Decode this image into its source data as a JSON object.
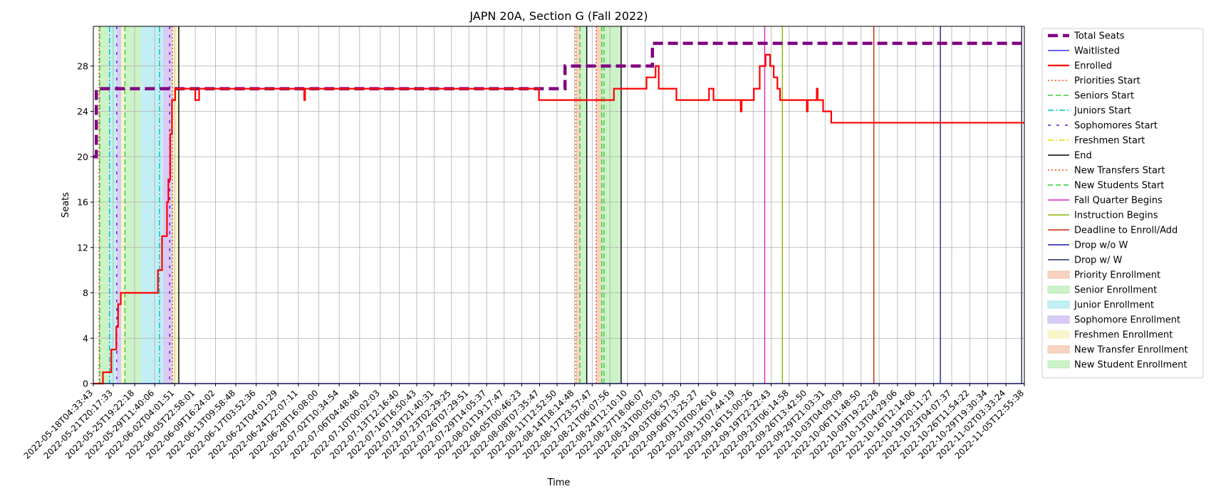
{
  "chart_data": {
    "type": "line",
    "title": "JAPN 20A, Section G (Fall 2022)",
    "xlabel": "Time",
    "ylabel": "Seats",
    "x_range": [
      "2022-05-18T04:33:43",
      "2022-11-05T12:55:38"
    ],
    "ylim": [
      0,
      31.5
    ],
    "y_ticks": [
      0,
      4,
      8,
      12,
      16,
      20,
      24,
      28
    ],
    "grid": true,
    "legend_position": "outside right",
    "x_tick_labels": [
      "2022-05-18T04:33:43",
      "2022-05-21T20:17:33",
      "2022-05-25T19:22:18",
      "2022-05-29T11:40:06",
      "2022-06-02T04:01:51",
      "2022-06-05T22:58:01",
      "2022-06-09T16:24:02",
      "2022-06-13T09:58:48",
      "2022-06-17T03:52:36",
      "2022-06-21T04:01:29",
      "2022-06-24T22:07:11",
      "2022-06-28T16:08:00",
      "2022-07-02T10:34:54",
      "2022-07-06T04:48:48",
      "2022-07-10T00:02:03",
      "2022-07-13T12:16:40",
      "2022-07-16T16:50:43",
      "2022-07-19T21:40:31",
      "2022-07-23T02:29:25",
      "2022-07-26T07:29:51",
      "2022-07-29T14:05:37",
      "2022-08-01T19:17:47",
      "2022-08-05T00:46:23",
      "2022-08-08T07:35:47",
      "2022-08-11T12:52:50",
      "2022-08-14T18:14:48",
      "2022-08-17T23:57:47",
      "2022-08-21T06:07:56",
      "2022-08-24T12:10:10",
      "2022-08-27T18:06:07",
      "2022-08-31T00:05:03",
      "2022-09-03T06:57:30",
      "2022-09-06T13:25:27",
      "2022-09-10T00:26:16",
      "2022-09-13T07:44:19",
      "2022-09-16T15:00:26",
      "2022-09-19T22:22:43",
      "2022-09-23T06:14:58",
      "2022-09-26T13:42:50",
      "2022-09-29T21:03:31",
      "2022-10-03T04:09:09",
      "2022-10-06T11:48:50",
      "2022-10-09T19:22:28",
      "2022-10-13T04:29:06",
      "2022-10-16T12:14:06",
      "2022-10-19T20:11:27",
      "2022-10-23T04:07:37",
      "2022-10-26T11:54:22",
      "2022-10-29T19:30:34",
      "2022-11-02T03:33:24",
      "2022-11-05T12:55:38"
    ],
    "series": [
      {
        "name": "Total Seats",
        "color": "#800080",
        "style": "dashed-thick",
        "points": [
          [
            "2022-05-18T04:33:43",
            20
          ],
          [
            "2022-05-18T18:00:00",
            20
          ],
          [
            "2022-05-18T18:00:00",
            26
          ],
          [
            "2022-08-13T00:00:00",
            26
          ],
          [
            "2022-08-13T00:00:00",
            28
          ],
          [
            "2022-08-29T02:00:00",
            28
          ],
          [
            "2022-08-29T02:00:00",
            30
          ],
          [
            "2022-11-05T12:55:38",
            30
          ]
        ]
      },
      {
        "name": "Waitlisted",
        "color": "#3333ff",
        "style": "solid",
        "points": [
          [
            "2022-05-18T04:33:43",
            0
          ],
          [
            "2022-11-05T12:55:38",
            0
          ]
        ]
      },
      {
        "name": "Enrolled",
        "color": "#ff0000",
        "style": "solid-thick",
        "points": [
          [
            "2022-05-18T04:33:43",
            0
          ],
          [
            "2022-05-19T23:00:00",
            0
          ],
          [
            "2022-05-19T23:00:00",
            1
          ],
          [
            "2022-05-21T12:00:00",
            1
          ],
          [
            "2022-05-21T12:00:00",
            3
          ],
          [
            "2022-05-22T10:00:00",
            3
          ],
          [
            "2022-05-22T10:00:00",
            5
          ],
          [
            "2022-05-22T18:00:00",
            5
          ],
          [
            "2022-05-22T18:00:00",
            7
          ],
          [
            "2022-05-23T06:00:00",
            7
          ],
          [
            "2022-05-23T06:00:00",
            8
          ],
          [
            "2022-05-30T02:00:00",
            8
          ],
          [
            "2022-05-30T02:00:00",
            10
          ],
          [
            "2022-05-30T20:00:00",
            10
          ],
          [
            "2022-05-30T20:00:00",
            13
          ],
          [
            "2022-05-31T18:00:00",
            13
          ],
          [
            "2022-05-31T18:00:00",
            16
          ],
          [
            "2022-06-01T00:00:00",
            16
          ],
          [
            "2022-06-01T00:00:00",
            18
          ],
          [
            "2022-06-01T08:00:00",
            18
          ],
          [
            "2022-06-01T08:00:00",
            22
          ],
          [
            "2022-06-01T16:00:00",
            22
          ],
          [
            "2022-06-01T16:00:00",
            25
          ],
          [
            "2022-06-02T06:00:00",
            25
          ],
          [
            "2022-06-02T06:00:00",
            26
          ],
          [
            "2022-06-05T22:58:01",
            26
          ],
          [
            "2022-06-05T22:58:01",
            25
          ],
          [
            "2022-06-06T16:00:00",
            25
          ],
          [
            "2022-06-06T16:00:00",
            26
          ],
          [
            "2022-06-26T00:00:00",
            26
          ],
          [
            "2022-06-26T00:00:00",
            25
          ],
          [
            "2022-06-26T04:00:00",
            25
          ],
          [
            "2022-06-26T04:00:00",
            26
          ],
          [
            "2022-08-08T05:00:00",
            26
          ],
          [
            "2022-08-08T05:00:00",
            25
          ],
          [
            "2022-08-22T00:00:00",
            25
          ],
          [
            "2022-08-22T00:00:00",
            26
          ],
          [
            "2022-08-28T00:00:00",
            26
          ],
          [
            "2022-08-28T00:00:00",
            27
          ],
          [
            "2022-08-29T16:00:00",
            27
          ],
          [
            "2022-08-29T16:00:00",
            28
          ],
          [
            "2022-08-30T06:00:00",
            28
          ],
          [
            "2022-08-30T06:00:00",
            26
          ],
          [
            "2022-09-02T12:00:00",
            26
          ],
          [
            "2022-09-02T12:00:00",
            25
          ],
          [
            "2022-09-08T12:00:00",
            25
          ],
          [
            "2022-09-08T12:00:00",
            26
          ],
          [
            "2022-09-09T08:00:00",
            26
          ],
          [
            "2022-09-09T08:00:00",
            25
          ],
          [
            "2022-09-14T08:00:00",
            25
          ],
          [
            "2022-09-14T08:00:00",
            24
          ],
          [
            "2022-09-14T12:00:00",
            24
          ],
          [
            "2022-09-14T12:00:00",
            25
          ],
          [
            "2022-09-16T18:00:00",
            25
          ],
          [
            "2022-09-16T18:00:00",
            26
          ],
          [
            "2022-09-17T20:00:00",
            26
          ],
          [
            "2022-09-17T20:00:00",
            28
          ],
          [
            "2022-09-18T22:00:00",
            28
          ],
          [
            "2022-09-18T22:00:00",
            29
          ],
          [
            "2022-09-19T18:00:00",
            29
          ],
          [
            "2022-09-19T18:00:00",
            28
          ],
          [
            "2022-09-20T10:00:00",
            28
          ],
          [
            "2022-09-20T10:00:00",
            27
          ],
          [
            "2022-09-21T02:00:00",
            27
          ],
          [
            "2022-09-21T02:00:00",
            26
          ],
          [
            "2022-09-21T14:00:00",
            26
          ],
          [
            "2022-09-21T14:00:00",
            25
          ],
          [
            "2022-09-26T12:00:00",
            25
          ],
          [
            "2022-09-26T12:00:00",
            24
          ],
          [
            "2022-09-26T16:00:00",
            24
          ],
          [
            "2022-09-26T16:00:00",
            25
          ],
          [
            "2022-09-28T08:00:00",
            25
          ],
          [
            "2022-09-28T08:00:00",
            26
          ],
          [
            "2022-09-28T12:00:00",
            26
          ],
          [
            "2022-09-28T12:00:00",
            25
          ],
          [
            "2022-09-29T12:00:00",
            25
          ],
          [
            "2022-09-29T12:00:00",
            24
          ],
          [
            "2022-10-01T00:00:00",
            24
          ],
          [
            "2022-10-01T00:00:00",
            23
          ],
          [
            "2022-11-05T12:55:38",
            23
          ]
        ]
      }
    ],
    "event_lines": [
      {
        "name": "Priorities Start",
        "color": "#ff4500",
        "style": "dotted",
        "dates": [
          "2022-05-19T06:00:00",
          "2022-08-15T00:00:00"
        ]
      },
      {
        "name": "Seniors Start",
        "color": "#33cc33",
        "style": "dashed",
        "dates": [
          "2022-05-19T09:00:00",
          "2022-05-24T00:00:00",
          "2022-08-20T04:00:00"
        ]
      },
      {
        "name": "Juniors Start",
        "color": "#00bfbf",
        "style": "dashdot",
        "dates": [
          "2022-05-21T04:00:00",
          "2022-05-30T09:00:00"
        ]
      },
      {
        "name": "Sophomores Start",
        "color": "#6a0dd9",
        "style": "loose-dash",
        "dates": [
          "2022-05-22T12:00:00",
          "2022-06-01T06:00:00"
        ]
      },
      {
        "name": "Freshmen Start",
        "color": "#e0d800",
        "style": "dashdot",
        "dates": []
      },
      {
        "name": "End",
        "color": "#000000",
        "style": "solid",
        "dates": [
          "2022-06-02T22:00:00",
          "2022-08-17T00:00:00",
          "2022-08-23T08:00:00"
        ]
      },
      {
        "name": "New Transfers Start",
        "color": "#ff4500",
        "style": "dotted",
        "dates": [
          "2022-08-18T18:00:00",
          "2022-06-01T18:00:00"
        ]
      },
      {
        "name": "New Students Start",
        "color": "#33cc33",
        "style": "dashed",
        "dates": [
          "2022-08-15T18:00:00",
          "2022-08-19T18:00:00"
        ]
      },
      {
        "name": "Fall Quarter Begins",
        "color": "#e020c0",
        "style": "solid",
        "dates": [
          "2022-09-18T18:00:00"
        ]
      },
      {
        "name": "Instruction Begins",
        "color": "#88bb00",
        "style": "solid",
        "dates": [
          "2022-09-22T00:00:00"
        ]
      },
      {
        "name": "Deadline to Enroll/Add",
        "color": "#cc2200",
        "style": "solid",
        "dates": [
          "2022-10-08T20:00:00"
        ]
      },
      {
        "name": "Drop w/o W",
        "color": "#1a1aa0",
        "style": "solid",
        "dates": [
          "2022-10-21T02:00:00"
        ]
      },
      {
        "name": "Drop w/ W",
        "color": "#1f2f5f",
        "style": "solid",
        "dates": [
          "2022-11-05T01:00:00"
        ]
      }
    ],
    "spans": [
      {
        "name": "Priority Enrollment",
        "color": "#f4c2a8",
        "ranges": [
          [
            "2022-05-19T06:00:00",
            "2022-05-19T09:00:00"
          ],
          [
            "2022-08-15T00:00:00",
            "2022-08-15T18:00:00"
          ]
        ]
      },
      {
        "name": "Senior Enrollment",
        "color": "#b7ecb0",
        "ranges": [
          [
            "2022-05-19T09:00:00",
            "2022-05-21T04:00:00"
          ],
          [
            "2022-05-24T00:00:00",
            "2022-05-27T00:00:00"
          ]
        ]
      },
      {
        "name": "Junior Enrollment",
        "color": "#a8e8ef",
        "ranges": [
          [
            "2022-05-21T04:00:00",
            "2022-05-22T12:00:00"
          ],
          [
            "2022-05-27T00:00:00",
            "2022-05-31T00:00:00"
          ]
        ]
      },
      {
        "name": "Sophomore Enrollment",
        "color": "#c8b6f2",
        "ranges": [
          [
            "2022-05-22T12:00:00",
            "2022-05-23T08:00:00"
          ],
          [
            "2022-05-31T00:00:00",
            "2022-06-01T18:00:00"
          ]
        ]
      },
      {
        "name": "Freshmen Enrollment",
        "color": "#f6f2b6",
        "ranges": [
          [
            "2022-05-23T08:00:00",
            "2022-05-24T00:00:00"
          ],
          [
            "2022-06-01T18:00:00",
            "2022-06-02T22:00:00"
          ]
        ]
      },
      {
        "name": "New Transfer Enrollment",
        "color": "#f4c2a8",
        "ranges": [
          [
            "2022-08-18T18:00:00",
            "2022-08-19T18:00:00"
          ]
        ]
      },
      {
        "name": "New Student Enrollment",
        "color": "#b7ecb0",
        "ranges": [
          [
            "2022-08-15T18:00:00",
            "2022-08-17T00:00:00"
          ],
          [
            "2022-08-19T18:00:00",
            "2022-08-23T08:00:00"
          ]
        ]
      }
    ],
    "legend": [
      {
        "label": "Total Seats",
        "kind": "line",
        "color": "#800080",
        "style": "dashed-thick"
      },
      {
        "label": "Waitlisted",
        "kind": "line",
        "color": "#3333ff",
        "style": "solid"
      },
      {
        "label": "Enrolled",
        "kind": "line",
        "color": "#ff0000",
        "style": "solid-thick"
      },
      {
        "label": "Priorities Start",
        "kind": "line",
        "color": "#ff4500",
        "style": "dotted"
      },
      {
        "label": "Seniors Start",
        "kind": "line",
        "color": "#33cc33",
        "style": "dashed"
      },
      {
        "label": "Juniors Start",
        "kind": "line",
        "color": "#00bfbf",
        "style": "dashdot"
      },
      {
        "label": "Sophomores Start",
        "kind": "line",
        "color": "#6a0dd9",
        "style": "loose-dash"
      },
      {
        "label": "Freshmen Start",
        "kind": "line",
        "color": "#e0d800",
        "style": "dashdot"
      },
      {
        "label": "End",
        "kind": "line",
        "color": "#000000",
        "style": "solid"
      },
      {
        "label": "New Transfers Start",
        "kind": "line",
        "color": "#ff4500",
        "style": "dotted"
      },
      {
        "label": "New Students Start",
        "kind": "line",
        "color": "#33cc33",
        "style": "dashed"
      },
      {
        "label": "Fall Quarter Begins",
        "kind": "line",
        "color": "#e020c0",
        "style": "solid"
      },
      {
        "label": "Instruction Begins",
        "kind": "line",
        "color": "#88bb00",
        "style": "solid"
      },
      {
        "label": "Deadline to Enroll/Add",
        "kind": "line",
        "color": "#cc2200",
        "style": "solid"
      },
      {
        "label": "Drop w/o W",
        "kind": "line",
        "color": "#1a1aa0",
        "style": "solid"
      },
      {
        "label": "Drop w/ W",
        "kind": "line",
        "color": "#1f2f5f",
        "style": "solid"
      },
      {
        "label": "Priority Enrollment",
        "kind": "patch",
        "color": "#f4c2a8"
      },
      {
        "label": "Senior Enrollment",
        "kind": "patch",
        "color": "#b7ecb0"
      },
      {
        "label": "Junior Enrollment",
        "kind": "patch",
        "color": "#a8e8ef"
      },
      {
        "label": "Sophomore Enrollment",
        "kind": "patch",
        "color": "#c8b6f2"
      },
      {
        "label": "Freshmen Enrollment",
        "kind": "patch",
        "color": "#f6f2b6"
      },
      {
        "label": "New Transfer Enrollment",
        "kind": "patch",
        "color": "#f4c2a8"
      },
      {
        "label": "New Student Enrollment",
        "kind": "patch",
        "color": "#b7ecb0"
      }
    ]
  }
}
